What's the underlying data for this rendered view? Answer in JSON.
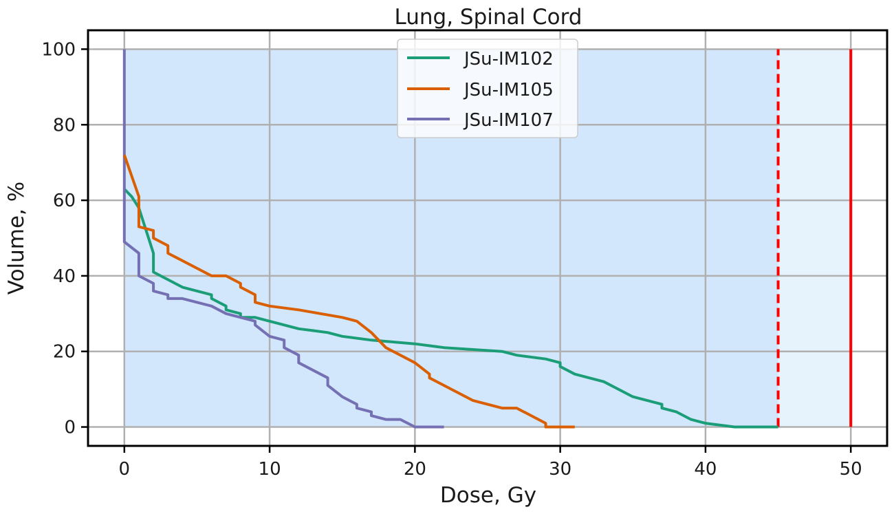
{
  "chart_data": {
    "type": "line",
    "title": "Lung, Spinal Cord",
    "xlabel": "Dose, Gy",
    "ylabel": "Volume, %",
    "xlim": [
      -2.5,
      52.5
    ],
    "ylim": [
      -5,
      105
    ],
    "xticks": [
      0,
      10,
      20,
      30,
      40,
      50
    ],
    "yticks": [
      0,
      20,
      40,
      60,
      80,
      100
    ],
    "xtick_labels": [
      "0",
      "10",
      "20",
      "30",
      "40",
      "50"
    ],
    "ytick_labels": [
      "0",
      "20",
      "40",
      "60",
      "80",
      "100"
    ],
    "grid": true,
    "legend": "top-center",
    "shaded_regions": [
      {
        "x": [
          0,
          45
        ],
        "y": [
          0,
          100
        ],
        "color": "#d2e7fb"
      },
      {
        "x": [
          45,
          50
        ],
        "y": [
          0,
          100
        ],
        "color": "#e6f2fc"
      }
    ],
    "reference_lines": [
      {
        "x": 45,
        "y": [
          0,
          100
        ],
        "style": "dashed",
        "color": "#ff0000"
      },
      {
        "x": 50,
        "y": [
          0,
          100
        ],
        "style": "solid",
        "color": "#ff0000"
      }
    ],
    "series": [
      {
        "name": "JSu-IM102",
        "color": "#1b9e77",
        "x": [
          0,
          0.5,
          1,
          1.5,
          2,
          2,
          2.5,
          3,
          4,
          5,
          6,
          6,
          7,
          7,
          8,
          8,
          9,
          10,
          11,
          12,
          13,
          14,
          15,
          17,
          20,
          22,
          24,
          26,
          27,
          29,
          30,
          30,
          31,
          33,
          35,
          37,
          37,
          38,
          39,
          40,
          42,
          45
        ],
        "y": [
          63,
          61,
          58,
          52,
          46,
          41,
          40,
          39,
          37,
          36,
          35,
          34,
          32,
          31,
          30,
          29,
          29,
          28,
          27,
          26,
          25.5,
          25,
          24,
          23,
          22,
          21,
          20.5,
          20,
          19,
          18,
          17,
          16,
          14,
          12,
          8,
          6,
          5,
          4,
          2,
          1,
          0,
          0
        ]
      },
      {
        "name": "JSu-IM105",
        "color": "#d95f02",
        "x": [
          0,
          1,
          1,
          2,
          2,
          3,
          3,
          4,
          6,
          7,
          8,
          8,
          9,
          9,
          10,
          12,
          15,
          16,
          17,
          18,
          20,
          21,
          21,
          22,
          24,
          26,
          27,
          29,
          29,
          31
        ],
        "y": [
          72,
          61,
          53,
          52,
          50,
          48,
          46,
          44,
          40,
          40,
          38,
          37,
          35,
          33,
          32,
          31,
          29,
          28,
          25,
          21,
          17,
          14,
          13,
          11,
          7,
          5,
          5,
          1,
          0,
          0
        ],
        "z": 2
      },
      {
        "name": "JSu-IM107",
        "color": "#7570b3",
        "x": [
          0,
          0,
          1,
          1,
          2,
          2,
          3,
          3,
          4,
          6,
          7,
          9,
          9,
          10,
          11,
          11,
          12,
          12,
          14,
          14,
          15,
          16,
          16,
          17,
          17,
          18,
          19,
          20,
          22
        ],
        "y": [
          100,
          49,
          46,
          40,
          38,
          36,
          35,
          34,
          34,
          32,
          30,
          28,
          27,
          24,
          23,
          21,
          19,
          17,
          13,
          11,
          8,
          6,
          5,
          4,
          3,
          2,
          2,
          0,
          0
        ]
      }
    ]
  }
}
